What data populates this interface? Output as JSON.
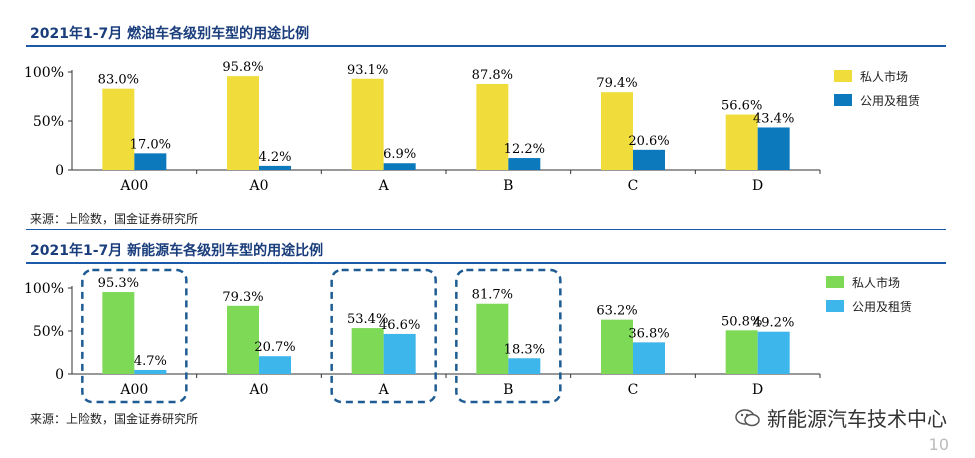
{
  "charts": [
    {
      "title": "2021年1-7月 燃油车各级别车型的用途比例",
      "source": "来源：上险数，国金证券研究所",
      "legend": [
        "私人市场",
        "公用及租赁"
      ],
      "colors": [
        "#f0dd3c",
        "#0d79bd"
      ]
    },
    {
      "title": "2021年1-7月 新能源车各级别车型的用途比例",
      "source": "来源：上险数，国金证券研究所",
      "legend": [
        "私人市场",
        "公用及租赁"
      ],
      "colors": [
        "#7ed957",
        "#3db6ec"
      ]
    }
  ],
  "watermark": {
    "text": "新能源汽车技术中心",
    "icon": "wechat-icon"
  },
  "page_number": "10",
  "chart_data": [
    {
      "type": "bar",
      "title": "2021年1-7月 燃油车各级别车型的用途比例",
      "categories": [
        "A00",
        "A0",
        "A",
        "B",
        "C",
        "D"
      ],
      "series": [
        {
          "name": "私人市场",
          "values": [
            83.0,
            95.8,
            93.1,
            87.8,
            79.4,
            56.6
          ]
        },
        {
          "name": "公用及租赁",
          "values": [
            17.0,
            4.2,
            6.9,
            12.2,
            20.6,
            43.4
          ]
        }
      ],
      "ylim": [
        0,
        100
      ],
      "yticks": [
        "0",
        "50%",
        "100%"
      ],
      "legend_position": "right",
      "highlighted_categories": []
    },
    {
      "type": "bar",
      "title": "2021年1-7月 新能源车各级别车型的用途比例",
      "categories": [
        "A00",
        "A0",
        "A",
        "B",
        "C",
        "D"
      ],
      "series": [
        {
          "name": "私人市场",
          "values": [
            95.3,
            79.3,
            53.4,
            81.7,
            63.2,
            50.8
          ]
        },
        {
          "name": "公用及租赁",
          "values": [
            4.7,
            20.7,
            46.6,
            18.3,
            36.8,
            49.2
          ]
        }
      ],
      "ylim": [
        0,
        100
      ],
      "yticks": [
        "0",
        "50%",
        "100%"
      ],
      "legend_position": "right",
      "highlighted_categories": [
        "A00",
        "A",
        "B"
      ]
    }
  ]
}
